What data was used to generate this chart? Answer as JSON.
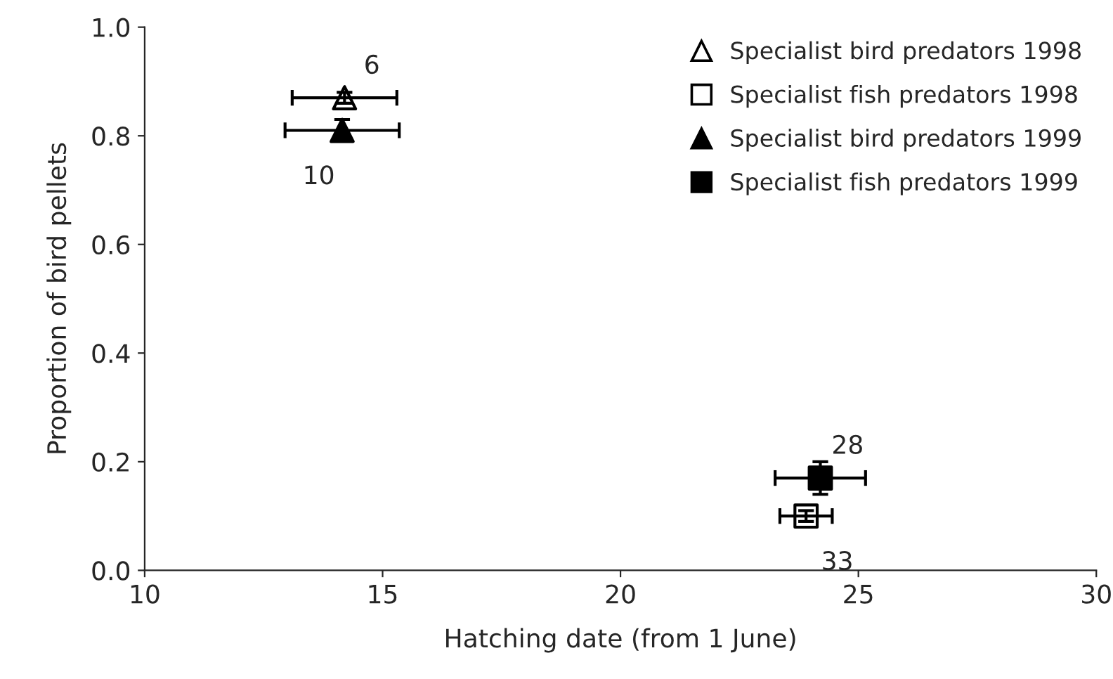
{
  "chart_data": {
    "type": "scatter",
    "xlabel": "Hatching date (from 1 June)",
    "ylabel": "Proportion of bird pellets",
    "xlim": [
      10,
      30
    ],
    "xticks": [
      10,
      15,
      20,
      25,
      30
    ],
    "ylim": [
      0,
      1.0
    ],
    "yticks": [
      {
        "value": 0,
        "label": "0.0"
      },
      {
        "value": 0.2,
        "label": "0.2"
      },
      {
        "value": 0.4,
        "label": "0.4"
      },
      {
        "value": 0.6,
        "label": "0.6"
      },
      {
        "value": 0.8,
        "label": "0.8"
      },
      {
        "value": 1.0,
        "label": "1.0"
      }
    ],
    "grid": false,
    "legend": "top right",
    "series": [
      {
        "name": "Specialist bird predators 1998",
        "marker": "triangle",
        "color": "#ffffff",
        "x": [
          14.2
        ],
        "values": [
          0.87
        ],
        "errors": [
          0.01
        ],
        "xerrors": [
          1.1
        ]
      },
      {
        "name": "Specialist fish predators 1998",
        "marker": "square",
        "color": "#ffffff",
        "x": [
          23.9
        ],
        "values": [
          0.1
        ],
        "errors": [
          0.01
        ],
        "xerrors": [
          0.55
        ]
      },
      {
        "name": "Specialist bird predators 1999",
        "marker": "triangle",
        "color": "#000000",
        "x": [
          14.15
        ],
        "values": [
          0.81
        ],
        "errors": [
          0.02
        ],
        "xerrors": [
          1.2
        ]
      },
      {
        "name": "Specialist fish predators 1999",
        "marker": "square",
        "color": "#000000",
        "x": [
          24.2
        ],
        "values": [
          0.17
        ],
        "errors": [
          0.03
        ],
        "xerrors": [
          0.95
        ]
      }
    ],
    "annotations": [
      {
        "text": "6",
        "x": 14.2,
        "y": 0.87
      },
      {
        "text": "10",
        "x": 14.15,
        "y": 0.81
      },
      {
        "text": "28",
        "x": 24.2,
        "y": 0.17
      },
      {
        "text": "33",
        "x": 23.9,
        "y": 0.1
      }
    ]
  }
}
